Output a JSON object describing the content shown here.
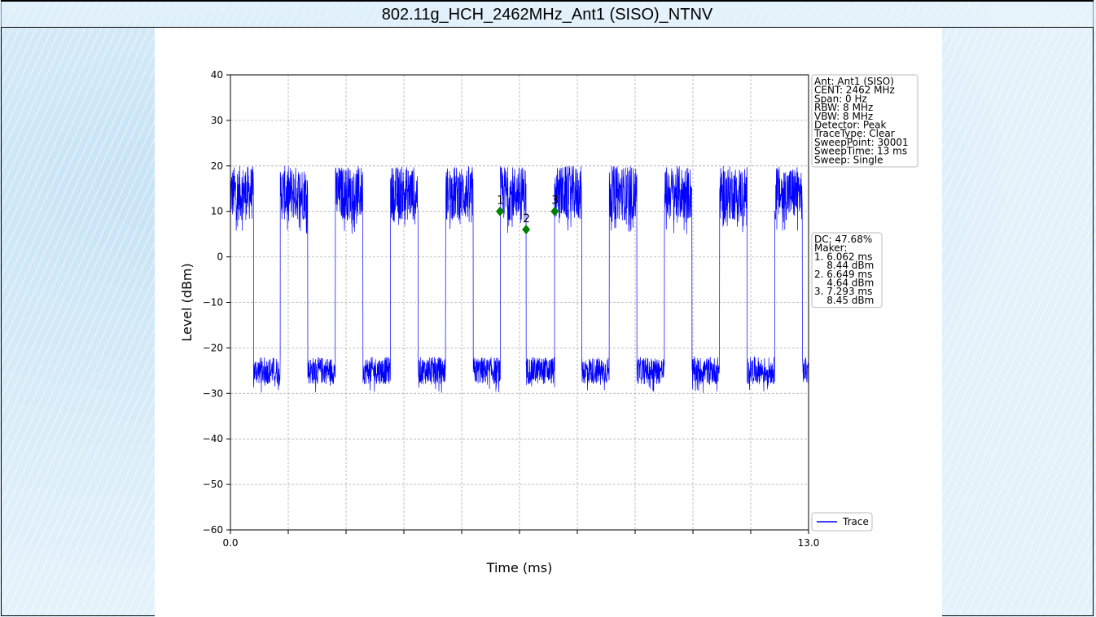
{
  "page": {
    "title": "802.11g_HCH_2462MHz_Ant1 (SISO)_NTNV"
  },
  "colors": {
    "trace": "#0000ff",
    "marker": "#008000"
  },
  "chart_data": {
    "type": "line",
    "title": "",
    "xlabel": "Time (ms)",
    "ylabel": "Level (dBm)",
    "xlim": [
      0.0,
      13.0
    ],
    "ylim": [
      -60,
      40
    ],
    "x_tick_labels": [
      {
        "value": 0.0,
        "label": "0.0"
      },
      {
        "value": 13.0,
        "label": "13.0"
      }
    ],
    "x_minor_ticks": [
      1.3,
      2.6,
      3.9,
      5.2,
      6.5,
      7.8,
      9.1,
      10.4,
      11.7
    ],
    "y_ticks": [
      40,
      30,
      20,
      10,
      0,
      -10,
      -20,
      -30,
      -40,
      -50,
      -60
    ],
    "grid": true,
    "legend": {
      "position": "bottom-right",
      "entries": [
        "Trace"
      ]
    },
    "series": [
      {
        "name": "Trace",
        "on_off_segments_ms": [
          {
            "on": [
              0.0,
              0.52
            ],
            "off": [
              0.52,
              1.12
            ]
          },
          {
            "on": [
              1.12,
              1.74
            ],
            "off": [
              1.74,
              2.36
            ]
          },
          {
            "on": [
              2.36,
              2.98
            ],
            "off": [
              2.98,
              3.6
            ]
          },
          {
            "on": [
              3.6,
              4.22
            ],
            "off": [
              4.22,
              4.84
            ]
          },
          {
            "on": [
              4.84,
              5.46
            ],
            "off": [
              5.46,
              6.07
            ]
          },
          {
            "on": [
              6.07,
              6.65
            ],
            "off": [
              6.65,
              7.29
            ]
          },
          {
            "on": [
              7.29,
              7.9
            ],
            "off": [
              7.9,
              8.52
            ]
          },
          {
            "on": [
              8.52,
              9.14
            ],
            "off": [
              9.14,
              9.76
            ]
          },
          {
            "on": [
              9.76,
              10.38
            ],
            "off": [
              10.38,
              11.0
            ]
          },
          {
            "on": [
              11.0,
              11.62
            ],
            "off": [
              11.62,
              12.24
            ]
          },
          {
            "on": [
              12.24,
              12.86
            ],
            "off": [
              12.86,
              13.0
            ]
          }
        ],
        "on_level_range_dBm": [
          8,
          20
        ],
        "off_level_range_dBm": [
          -28,
          -22
        ]
      }
    ],
    "markers": [
      {
        "id": "1",
        "x": 6.062,
        "y": 10.0
      },
      {
        "id": "2",
        "x": 6.649,
        "y": 6.0
      },
      {
        "id": "3",
        "x": 7.293,
        "y": 10.0
      }
    ],
    "info_box": [
      "Ant: Ant1 (SISO)",
      "CENT: 2462 MHz",
      "Span: 0 Hz",
      "RBW: 8 MHz",
      "VBW: 8 MHz",
      "Detector: Peak",
      "TraceType: Clear",
      "SweepPoint: 30001",
      "SweepTime: 13 ms",
      "Sweep: Single"
    ],
    "marker_box": [
      "DC: 47.68%",
      "Maker:",
      "1. 6.062 ms",
      "    8.44 dBm",
      "2. 6.649 ms",
      "    4.64 dBm",
      "3. 7.293 ms",
      "    8.45 dBm"
    ]
  }
}
